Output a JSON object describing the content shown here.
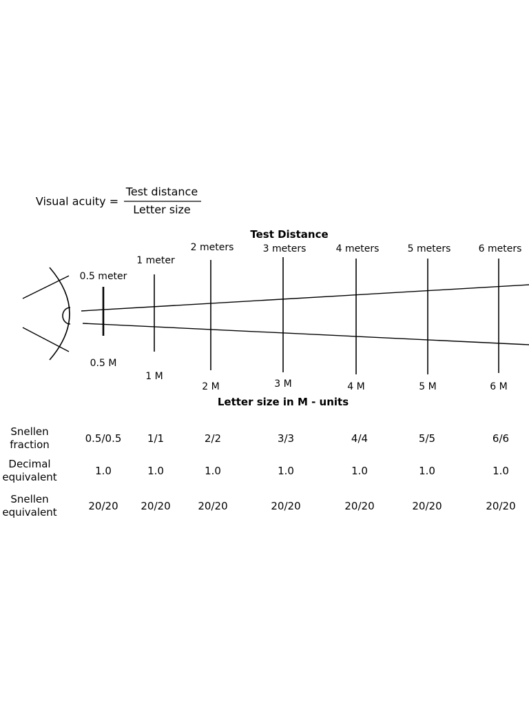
{
  "formula": {
    "label": "Visual acuity =",
    "numerator": "Test distance",
    "denominator": "Letter size"
  },
  "diagram": {
    "top_title": "Test Distance",
    "bottom_title": "Letter size in M - units",
    "stations": [
      {
        "distance": "0.5 meter",
        "letter_size": "0.5 M"
      },
      {
        "distance": "1 meter",
        "letter_size": "1 M"
      },
      {
        "distance": "2 meters",
        "letter_size": "2 M"
      },
      {
        "distance": "3 meters",
        "letter_size": "3 M"
      },
      {
        "distance": "4 meters",
        "letter_size": "4 M"
      },
      {
        "distance": "5 meters",
        "letter_size": "5 M"
      },
      {
        "distance": "6 meters",
        "letter_size": "6 M"
      }
    ]
  },
  "table": {
    "rows": [
      {
        "label": "Snellen fraction",
        "values": [
          "0.5/0.5",
          "1/1",
          "2/2",
          "3/3",
          "4/4",
          "5/5",
          "6/6"
        ]
      },
      {
        "label": "Decimal equivalent",
        "values": [
          "1.0",
          "1.0",
          "1.0",
          "1.0",
          "1.0",
          "1.0",
          "1.0"
        ]
      },
      {
        "label": "Snellen equivalent",
        "values": [
          "20/20",
          "20/20",
          "20/20",
          "20/20",
          "20/20",
          "20/20",
          "20/20"
        ]
      }
    ]
  }
}
